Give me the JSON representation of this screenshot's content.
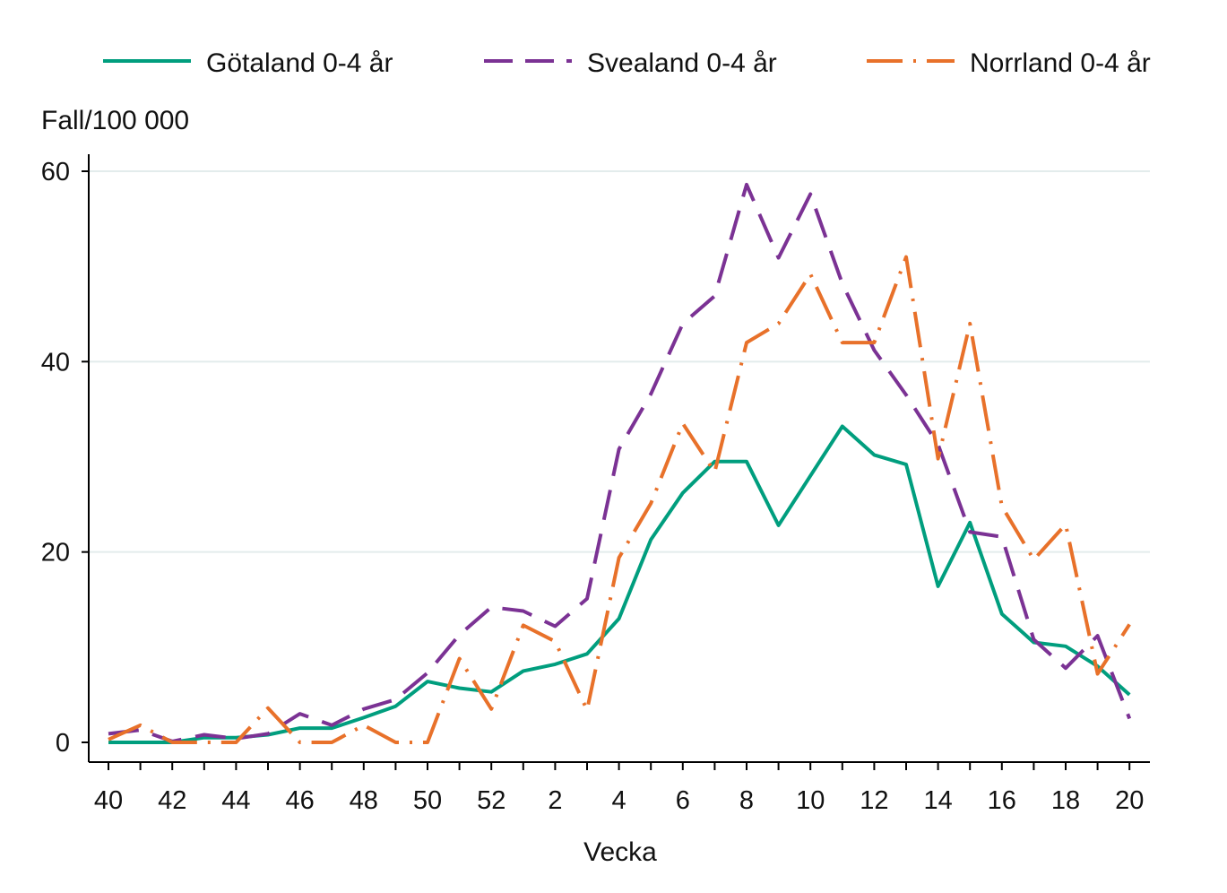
{
  "chart_data": {
    "type": "line",
    "title": "",
    "xlabel": "Vecka",
    "ylabel": "Fall/100 000",
    "ylim": [
      0,
      60
    ],
    "yticks": [
      0,
      20,
      40,
      60
    ],
    "grid": true,
    "legend_position": "top",
    "x": [
      40,
      41,
      42,
      43,
      44,
      45,
      46,
      47,
      48,
      49,
      50,
      51,
      52,
      1,
      2,
      3,
      4,
      5,
      6,
      7,
      8,
      9,
      10,
      11,
      12,
      13,
      14,
      15,
      16,
      17,
      18,
      19,
      20
    ],
    "xtick_labels": [
      "40",
      "42",
      "44",
      "46",
      "48",
      "50",
      "52",
      "2",
      "4",
      "6",
      "8",
      "10",
      "12",
      "14",
      "16",
      "18",
      "20"
    ],
    "series": [
      {
        "name": "Götaland 0-4 år",
        "color": "#009E7E",
        "style": "solid",
        "values": [
          0,
          0,
          0,
          0.5,
          0.5,
          0.8,
          1.5,
          1.5,
          2.6,
          3.8,
          6.4,
          5.7,
          5.3,
          7.5,
          8.2,
          9.3,
          13,
          21.3,
          26.2,
          29.5,
          29.5,
          22.8,
          28,
          33.2,
          30.2,
          29.2,
          16.4,
          23.1,
          13.5,
          10.5,
          10.1,
          8,
          5
        ]
      },
      {
        "name": "Svealand 0-4 år",
        "color": "#7B3294",
        "style": "dashed",
        "values": [
          0.9,
          1.3,
          0.1,
          0.8,
          0.4,
          0.9,
          3,
          1.8,
          3.5,
          4.5,
          7.3,
          11.3,
          14.2,
          13.8,
          12.2,
          15.1,
          30.8,
          36.6,
          44,
          46.9,
          58.6,
          50.9,
          57.6,
          48.2,
          41.2,
          36.5,
          31.3,
          22.1,
          21.6,
          10.8,
          7.8,
          11.2,
          2.5
        ]
      },
      {
        "name": "Norrland 0-4 år",
        "color": "#E8712A",
        "style": "dashdot",
        "values": [
          0.3,
          1.8,
          0,
          0,
          0,
          3.6,
          0,
          0,
          1.8,
          0,
          0,
          8.8,
          3.5,
          12.3,
          10.6,
          3.4,
          19.4,
          25.1,
          33.5,
          28.4,
          42,
          44,
          49.2,
          42,
          42,
          51,
          29.8,
          44,
          24.8,
          19.2,
          22.9,
          7.2,
          12.4
        ]
      }
    ]
  }
}
